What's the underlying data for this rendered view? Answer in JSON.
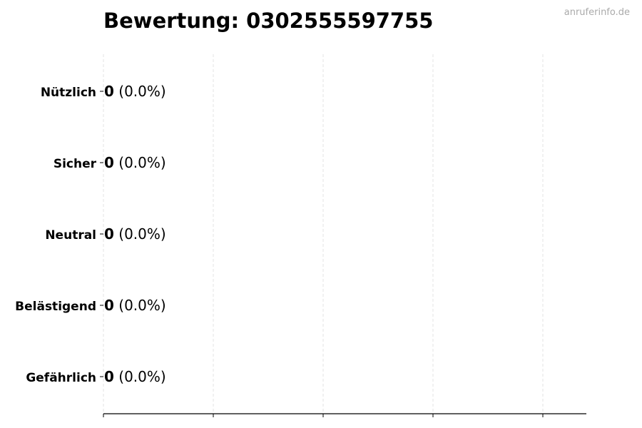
{
  "chart_data": {
    "type": "bar",
    "orientation": "horizontal",
    "title": "Bewertung: 0302555597755",
    "watermark": "anruferinfo.de",
    "categories": [
      "Nützlich",
      "Sicher",
      "Neutral",
      "Belästigend",
      "Gefährlich"
    ],
    "values": [
      0,
      0,
      0,
      0,
      0
    ],
    "percent_labels": [
      "(0.0%)",
      "(0.0%)",
      "(0.0%)",
      "(0.0%)",
      "(0.0%)"
    ],
    "count_labels": [
      "0",
      "0",
      "0",
      "0",
      "0"
    ],
    "x_tick_count": 5,
    "x_tick_labels_shown": false,
    "grid": "vertical dashed",
    "colors": {
      "grid": "#dddddd",
      "axis": "#000000",
      "bar_edge": "#000000",
      "watermark": "#aaaaaa"
    }
  }
}
